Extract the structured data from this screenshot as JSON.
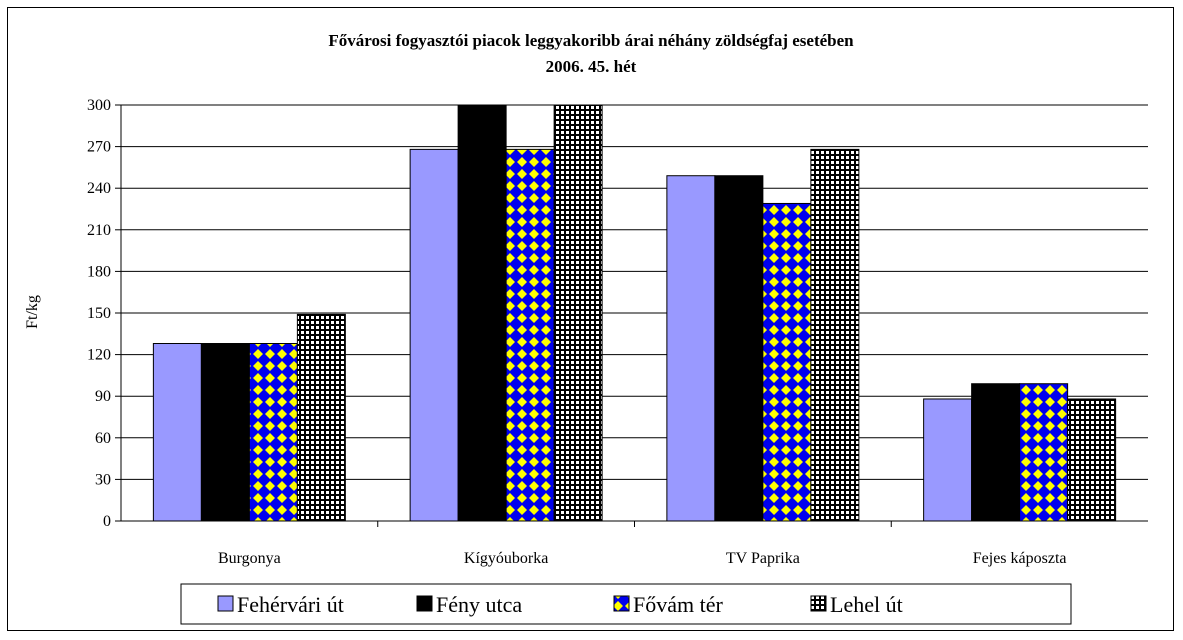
{
  "chart_data": {
    "type": "bar",
    "title": "Fővárosi fogyasztói piacok leggyakoribb árai néhány zöldségfaj esetében",
    "subtitle": "2006. 45. hét",
    "ylabel": "Ft/kg",
    "xlabel": "",
    "ylim": [
      0,
      300
    ],
    "yticks": [
      0,
      30,
      60,
      90,
      120,
      150,
      180,
      210,
      240,
      270,
      300
    ],
    "grid": true,
    "legend_position": "bottom",
    "categories": [
      "Burgonya",
      "Kígyóuborka",
      "TV Paprika",
      "Fejes káposzta"
    ],
    "series": [
      {
        "name": "Fehérvári út",
        "values": [
          128,
          268,
          249,
          88
        ],
        "color": "#9999ff",
        "pattern": "solid"
      },
      {
        "name": "Fény utca",
        "values": [
          128,
          300,
          249,
          99
        ],
        "color": "#000000",
        "pattern": "solid"
      },
      {
        "name": "Fővám tér",
        "values": [
          128,
          268,
          229,
          99
        ],
        "color": "#0000ee",
        "pattern": "diamond-yellow"
      },
      {
        "name": "Lehel út",
        "values": [
          149,
          300,
          268,
          88
        ],
        "color": "#000000",
        "pattern": "grid-white"
      }
    ]
  }
}
